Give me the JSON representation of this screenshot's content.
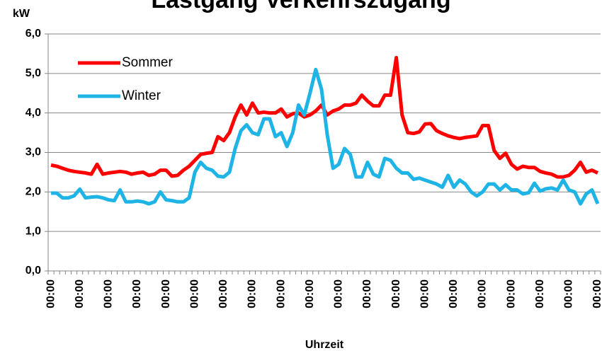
{
  "chart_data": {
    "type": "line",
    "title": "Lastgang Verkehrszugang",
    "y_label": "kW",
    "x_label": "Uhrzeit",
    "categories": [
      "00:00",
      null,
      null,
      null,
      null,
      "00:00",
      null,
      null,
      null,
      null,
      "00:00",
      null,
      null,
      null,
      null,
      "00:00",
      null,
      null,
      null,
      null,
      "00:00",
      null,
      null,
      null,
      null,
      "00:00",
      null,
      null,
      null,
      null,
      "00:00",
      null,
      null,
      null,
      null,
      "00:00",
      null,
      null,
      null,
      null,
      "00:00",
      null,
      null,
      null,
      null,
      "00:00",
      null,
      null,
      null,
      null,
      "00:00",
      null,
      null,
      null,
      null,
      "00:00",
      null,
      null,
      null,
      null,
      "00:00",
      null,
      null,
      null,
      null,
      "00:00",
      null,
      null,
      null,
      null,
      "00:00",
      null,
      null,
      null,
      null,
      "00:00",
      null,
      null,
      null,
      null,
      "00:00",
      null,
      null,
      null,
      null,
      "00:00",
      null,
      null,
      null,
      null,
      "00:00",
      null,
      null,
      null,
      null,
      "00:00"
    ],
    "series": [
      {
        "name": "Sommer",
        "color": "#ff0000",
        "values": [
          2.68,
          2.65,
          2.6,
          2.55,
          2.52,
          2.5,
          2.48,
          2.45,
          2.7,
          2.45,
          2.48,
          2.5,
          2.52,
          2.5,
          2.45,
          2.48,
          2.5,
          2.42,
          2.45,
          2.55,
          2.55,
          2.4,
          2.42,
          2.55,
          2.65,
          2.8,
          2.95,
          2.98,
          3.0,
          3.4,
          3.3,
          3.5,
          3.9,
          4.2,
          3.95,
          4.25,
          4.0,
          4.02,
          4.0,
          4.0,
          4.1,
          3.9,
          3.98,
          4.0,
          3.9,
          3.95,
          4.05,
          4.2,
          3.95,
          4.05,
          4.1,
          4.2,
          4.2,
          4.25,
          4.45,
          4.3,
          4.18,
          4.18,
          4.45,
          4.45,
          5.4,
          3.95,
          3.5,
          3.48,
          3.52,
          3.72,
          3.73,
          3.55,
          3.48,
          3.42,
          3.38,
          3.35,
          3.38,
          3.4,
          3.42,
          3.68,
          3.68,
          3.05,
          2.85,
          2.98,
          2.7,
          2.58,
          2.65,
          2.62,
          2.62,
          2.52,
          2.48,
          2.45,
          2.38,
          2.38,
          2.42,
          2.55,
          2.75,
          2.5,
          2.55,
          2.48
        ]
      },
      {
        "name": "Winter",
        "color": "#1fb4e6",
        "values": [
          1.97,
          1.97,
          1.85,
          1.85,
          1.9,
          2.07,
          1.85,
          1.87,
          1.88,
          1.85,
          1.8,
          1.78,
          2.05,
          1.75,
          1.75,
          1.77,
          1.75,
          1.7,
          1.75,
          2.0,
          1.8,
          1.78,
          1.75,
          1.75,
          1.85,
          2.5,
          2.75,
          2.6,
          2.55,
          2.4,
          2.38,
          2.5,
          3.1,
          3.55,
          3.7,
          3.5,
          3.45,
          3.85,
          3.85,
          3.4,
          3.5,
          3.15,
          3.5,
          4.2,
          3.95,
          4.5,
          5.1,
          4.6,
          3.45,
          2.6,
          2.7,
          3.1,
          2.95,
          2.38,
          2.38,
          2.75,
          2.45,
          2.38,
          2.85,
          2.8,
          2.6,
          2.48,
          2.48,
          2.32,
          2.35,
          2.3,
          2.25,
          2.2,
          2.12,
          2.42,
          2.12,
          2.3,
          2.2,
          2.0,
          1.9,
          2.0,
          2.2,
          2.2,
          2.05,
          2.18,
          2.05,
          2.05,
          1.95,
          1.98,
          2.22,
          2.02,
          2.08,
          2.1,
          2.05,
          2.3,
          2.05,
          2.0,
          1.7,
          1.95,
          2.05,
          1.7
        ]
      }
    ],
    "ylim": [
      0,
      6
    ],
    "yticks": [
      {
        "value": 0,
        "label": "0,0"
      },
      {
        "value": 1,
        "label": "1,0"
      },
      {
        "value": 2,
        "label": "2,0"
      },
      {
        "value": 3,
        "label": "3,0"
      },
      {
        "value": 4,
        "label": "4,0"
      },
      {
        "value": 5,
        "label": "5,0"
      },
      {
        "value": 6,
        "label": "6,0"
      }
    ],
    "grid": true,
    "legend": "upper-left"
  }
}
